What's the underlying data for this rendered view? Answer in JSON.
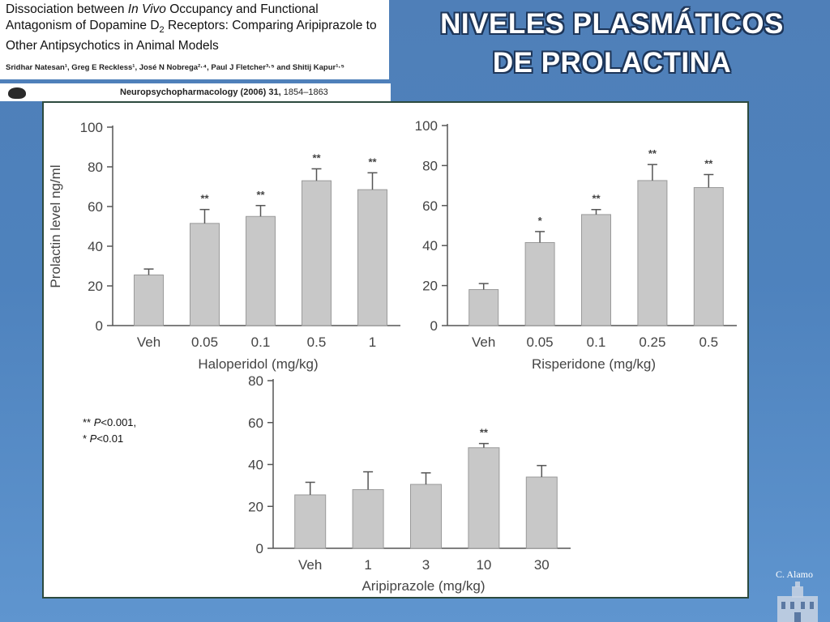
{
  "paper": {
    "title_part1": "Dissociation between ",
    "title_italic": "In Vivo",
    "title_part2": " Occupancy and Functional Antagonism of Dopamine D",
    "title_subscript": "2",
    "title_part3": " Receptors: Comparing Aripiprazole to Other Antipsychotics in Animal Models",
    "authors": "Sridhar Natesan¹, Greg E Reckless¹, José N Nobrega²·⁴, Paul J Fletcher³·⁵ and Shitij Kapur¹·⁵",
    "journal_bold": "Neuropsychopharmacology (2006) 31,",
    "journal_rest": " 1854–1863"
  },
  "slide_title": {
    "line1": "NIVELES PLASMÁTICOS",
    "line2": "DE PROLACTINA"
  },
  "significance": {
    "line1_stars": "** ",
    "line1_p": "P",
    "line1_rest": "<0.001,",
    "line2_stars": "* ",
    "line2_p": "P",
    "line2_rest": "<0.01"
  },
  "credit": "C. Alamo",
  "colors": {
    "bar": "#c8c8c8",
    "bar_stroke": "#9a9a9a",
    "axis": "#555555",
    "text": "#444444",
    "panel_border": "#2c4a3e"
  },
  "chart_data": [
    {
      "type": "bar",
      "title": "",
      "xlabel": "Haloperidol (mg/kg)",
      "ylabel": "Prolactin level ng/ml",
      "ylim": [
        0,
        100
      ],
      "yticks": [
        0,
        20,
        40,
        60,
        80,
        100
      ],
      "categories": [
        "Veh",
        "0.05",
        "0.1",
        "0.5",
        "1"
      ],
      "values": [
        25.5,
        51.5,
        55,
        73,
        68.5
      ],
      "errors": [
        3,
        7,
        5.5,
        6,
        8.5
      ],
      "significance": [
        "",
        "**",
        "**",
        "**",
        "**"
      ]
    },
    {
      "type": "bar",
      "title": "",
      "xlabel": "Risperidone (mg/kg)",
      "ylabel": "",
      "ylim": [
        0,
        100
      ],
      "yticks": [
        0,
        20,
        40,
        60,
        80,
        100
      ],
      "categories": [
        "Veh",
        "0.05",
        "0.1",
        "0.25",
        "0.5"
      ],
      "values": [
        18,
        41.5,
        55.5,
        72.5,
        69
      ],
      "errors": [
        3,
        5.5,
        2.5,
        8,
        6.5
      ],
      "significance": [
        "",
        "*",
        "**",
        "**",
        "**"
      ]
    },
    {
      "type": "bar",
      "title": "",
      "xlabel": "Aripiprazole (mg/kg)",
      "ylabel": "",
      "ylim": [
        0,
        80
      ],
      "yticks": [
        0,
        20,
        40,
        60,
        80
      ],
      "categories": [
        "Veh",
        "1",
        "3",
        "10",
        "30"
      ],
      "values": [
        25.5,
        28,
        30.5,
        48,
        34
      ],
      "errors": [
        6,
        8.5,
        5.5,
        2,
        5.5
      ],
      "significance": [
        "",
        "",
        "",
        "**",
        ""
      ]
    }
  ]
}
